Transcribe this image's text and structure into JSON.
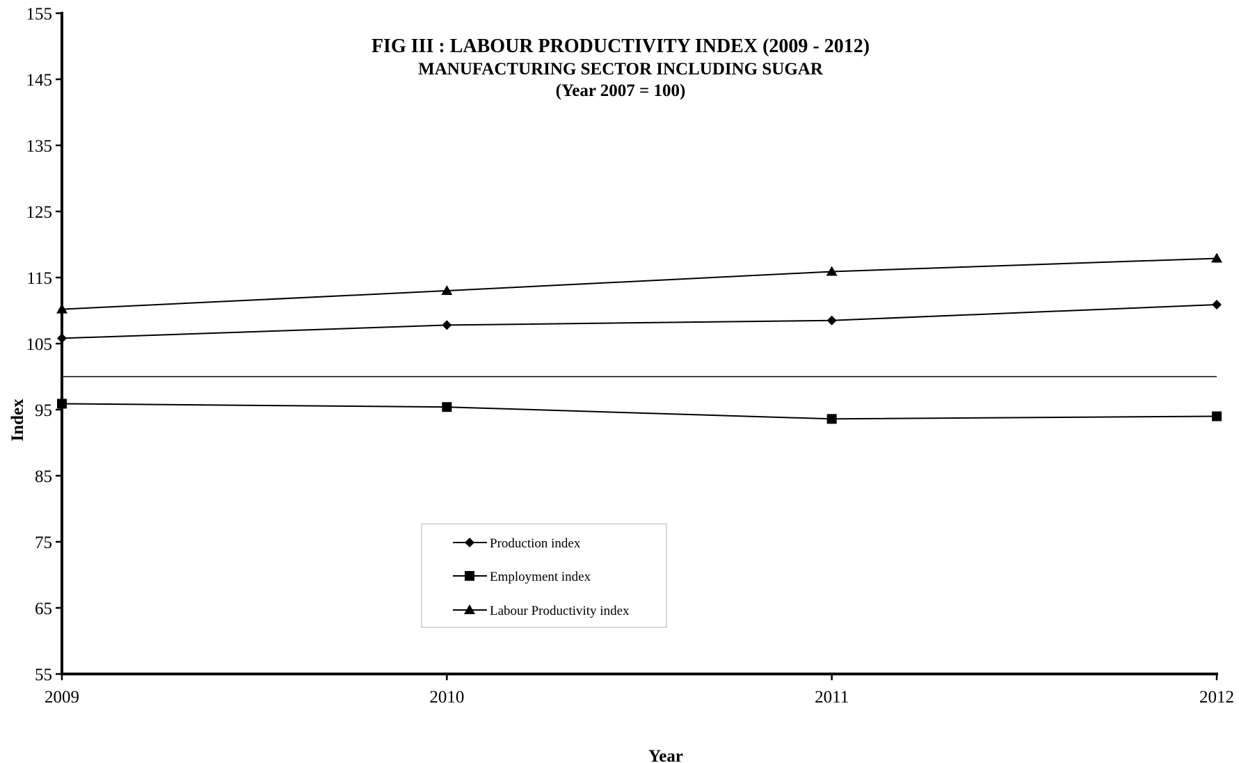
{
  "chart_data": {
    "type": "line",
    "title": "FIG III : LABOUR PRODUCTIVITY INDEX (2009 - 2012)",
    "subtitle": "MANUFACTURING SECTOR INCLUDING SUGAR",
    "subtitle2": "(Year 2007 = 100)",
    "xlabel": "Year",
    "ylabel": "Index",
    "x": [
      "2009",
      "2010",
      "2011",
      "2012"
    ],
    "ylim": [
      55,
      155
    ],
    "yticks": [
      "55",
      "65",
      "75",
      "85",
      "95",
      "105",
      "115",
      "125",
      "135",
      "145",
      "155"
    ],
    "reference_line": 100,
    "grid": false,
    "legend_position": "bottom-center",
    "series": [
      {
        "name": "Production index",
        "marker": "diamond",
        "values": [
          105.8,
          107.8,
          108.5,
          110.9
        ]
      },
      {
        "name": "Employment index",
        "marker": "square",
        "values": [
          95.9,
          95.4,
          93.6,
          94.0
        ]
      },
      {
        "name": "Labour Productivity index",
        "marker": "triangle",
        "values": [
          110.2,
          113.0,
          115.9,
          117.9
        ]
      }
    ],
    "colors": {
      "line": "#000000",
      "background": "#ffffff"
    }
  }
}
